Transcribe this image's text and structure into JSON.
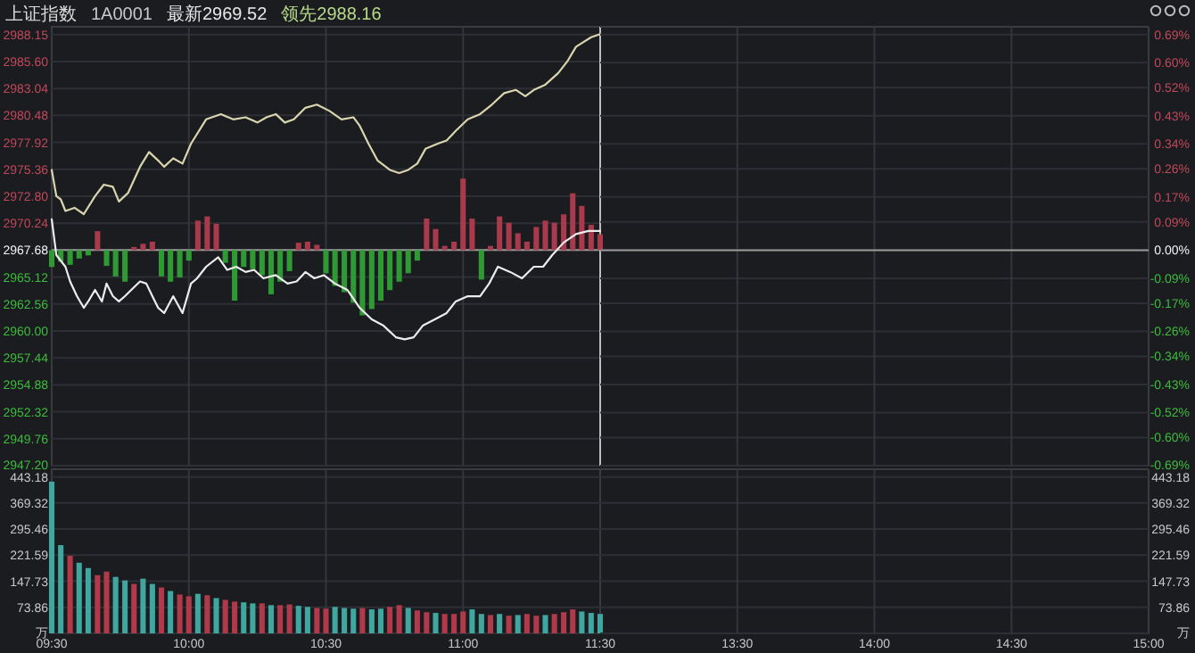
{
  "chart_data": [
    {
      "type": "line",
      "title": "上证指数",
      "annotations": [
        "1A0001",
        "最新2969.52",
        "领先2988.16"
      ],
      "xlim": [
        9.5,
        11.5
      ],
      "xticks": [
        {
          "value": 9.5,
          "label": null
        },
        {
          "value": 10,
          "label": null
        },
        {
          "value": 10.5,
          "label": null
        },
        {
          "value": 11,
          "label": null
        },
        {
          "value": 11.5,
          "label": null
        }
      ],
      "tick_labels": "y",
      "ylim": [
        2947.2,
        2988.9
      ],
      "yticks": [
        {
          "value": 2988.15,
          "label": "2988.15"
        },
        {
          "value": 2985.6,
          "label": "2985.60"
        },
        {
          "value": 2983.04,
          "label": "2983.04"
        },
        {
          "value": 2980.48,
          "label": "2980.48"
        },
        {
          "value": 2977.92,
          "label": "2977.92"
        },
        {
          "value": 2975.36,
          "label": "2975.36"
        },
        {
          "value": 2972.8,
          "label": "2972.80"
        },
        {
          "value": 2970.24,
          "label": "2970.24"
        },
        {
          "value": 2967.68,
          "label": "2967.68"
        },
        {
          "value": 2965.12,
          "label": "2965.12"
        },
        {
          "value": 2962.56,
          "label": "2962.56"
        },
        {
          "value": 2960,
          "label": "2960.00"
        },
        {
          "value": 2957.44,
          "label": "2957.44"
        },
        {
          "value": 2954.88,
          "label": "2954.88"
        },
        {
          "value": 2952.32,
          "label": "2952.32"
        },
        {
          "value": 2949.76,
          "label": "2949.76"
        },
        {
          "value": 2947.2,
          "label": "2947.20"
        }
      ],
      "grid": true,
      "ref_lines": [
        {
          "axis": "y",
          "value": 2967.68,
          "color": "#9a9a9a"
        },
        {
          "axis": "x",
          "value": 11.5,
          "color": "#bdbdbd"
        }
      ],
      "series": [
        {
          "type": "bar",
          "x": [
            9.5,
            9.533,
            9.567,
            9.6,
            9.633,
            9.667,
            9.7,
            9.733,
            9.767,
            9.8,
            9.833,
            9.867,
            9.9,
            9.933,
            9.967,
            10,
            10.033,
            10.067,
            10.1,
            10.133,
            10.167,
            10.2,
            10.233,
            10.267,
            10.3,
            10.333,
            10.367,
            10.4,
            10.433,
            10.467,
            10.5,
            10.533,
            10.567,
            10.6,
            10.633,
            10.667,
            10.7,
            10.733,
            10.767,
            10.8,
            10.833,
            10.867,
            10.9,
            10.933,
            10.967,
            11,
            11.033,
            11.067,
            11.1,
            11.133,
            11.167,
            11.2,
            11.233,
            11.267,
            11.3,
            11.333,
            11.367,
            11.4,
            11.433,
            11.467,
            11.5
          ],
          "base": [
            2967.68,
            2967.68,
            2967.68,
            2967.68,
            2967.68,
            2967.68,
            2967.68,
            2967.68,
            2967.68,
            2967.68,
            2967.68,
            2967.68,
            2967.68,
            2967.68,
            2967.68,
            2967.68,
            2967.68,
            2967.68,
            2967.68,
            2967.68,
            2967.68,
            2967.68,
            2967.68,
            2967.68,
            2967.68,
            2967.68,
            2967.68,
            2967.68,
            2967.68,
            2967.68,
            2967.68,
            2967.68,
            2967.68,
            2967.68,
            2967.68,
            2967.68,
            2967.68,
            2967.68,
            2967.68,
            2967.68,
            2967.68,
            2967.68,
            2967.68,
            2967.68,
            2967.68,
            2967.68,
            2967.68,
            2967.68,
            2967.68,
            2967.68,
            2967.68,
            2967.68,
            2967.68,
            2967.68,
            2967.68,
            2967.68,
            2967.68,
            2967.68,
            2967.68,
            2967.68,
            2967.68
          ],
          "values": [
            -1.6,
            -1.1,
            -1.4,
            -0.8,
            -0.5,
            1.8,
            -1.5,
            -2.5,
            -3.0,
            0.3,
            0.6,
            0.8,
            -2.5,
            -3.0,
            -2.6,
            -1.0,
            2.8,
            3.2,
            2.5,
            -1.2,
            -4.8,
            -1.6,
            -1.8,
            -2.4,
            -4.2,
            -3.0,
            -2.0,
            0.7,
            0.8,
            0.5,
            -2.2,
            -3.4,
            -4.0,
            -5.0,
            -6.2,
            -5.6,
            -4.8,
            -3.8,
            -3.0,
            -2.2,
            -1.0,
            3.0,
            2.0,
            0.4,
            0.8,
            6.8,
            3.0,
            -2.8,
            0.4,
            3.2,
            2.6,
            1.6,
            0.8,
            2.2,
            2.8,
            2.6,
            3.4,
            5.4,
            4.2,
            2.4,
            1.5
          ],
          "colors": [
            "#2f9a34",
            "#2f9a34",
            "#2f9a34",
            "#2f9a34",
            "#2f9a34",
            "#a83a4c",
            "#2f9a34",
            "#2f9a34",
            "#2f9a34",
            "#a83a4c",
            "#a83a4c",
            "#a83a4c",
            "#2f9a34",
            "#2f9a34",
            "#2f9a34",
            "#2f9a34",
            "#a83a4c",
            "#a83a4c",
            "#a83a4c",
            "#2f9a34",
            "#2f9a34",
            "#2f9a34",
            "#2f9a34",
            "#2f9a34",
            "#2f9a34",
            "#2f9a34",
            "#2f9a34",
            "#a83a4c",
            "#a83a4c",
            "#a83a4c",
            "#2f9a34",
            "#2f9a34",
            "#2f9a34",
            "#2f9a34",
            "#2f9a34",
            "#2f9a34",
            "#2f9a34",
            "#2f9a34",
            "#2f9a34",
            "#2f9a34",
            "#2f9a34",
            "#a83a4c",
            "#a83a4c",
            "#a83a4c",
            "#a83a4c",
            "#a83a4c",
            "#a83a4c",
            "#2f9a34",
            "#a83a4c",
            "#a83a4c",
            "#a83a4c",
            "#a83a4c",
            "#a83a4c",
            "#a83a4c",
            "#a83a4c",
            "#a83a4c",
            "#a83a4c",
            "#a83a4c",
            "#a83a4c",
            "#a83a4c",
            "#a83a4c"
          ]
        },
        {
          "color": "#d9d5ae",
          "x": [
            9.5,
            9.517,
            9.533,
            9.55,
            9.583,
            9.617,
            9.658,
            9.69,
            9.723,
            9.745,
            9.778,
            9.822,
            9.855,
            9.888,
            9.91,
            9.943,
            9.977,
            10.008,
            10.063,
            10.117,
            10.162,
            10.207,
            10.25,
            10.283,
            10.317,
            10.35,
            10.383,
            10.425,
            10.467,
            10.513,
            10.557,
            10.6,
            10.623,
            10.655,
            10.688,
            10.733,
            10.767,
            10.8,
            10.833,
            10.863,
            10.908,
            10.94,
            10.973,
            11.017,
            11.062,
            11.105,
            11.15,
            11.193,
            11.227,
            11.258,
            11.3,
            11.347,
            11.38,
            11.412,
            11.467,
            11.5
          ],
          "values": [
            2975.3,
            2972.8,
            2972.5,
            2971.4,
            2971.7,
            2971.1,
            2972.8,
            2973.9,
            2973.7,
            2972.3,
            2973.1,
            2975.6,
            2977.0,
            2976.2,
            2975.6,
            2976.4,
            2975.9,
            2977.8,
            2980.1,
            2980.6,
            2980.1,
            2980.3,
            2979.8,
            2980.3,
            2980.6,
            2979.8,
            2980.1,
            2981.2,
            2981.5,
            2980.9,
            2980.1,
            2980.3,
            2979.5,
            2977.8,
            2976.2,
            2975.3,
            2975.0,
            2975.3,
            2975.9,
            2977.3,
            2977.8,
            2978.1,
            2979.0,
            2980.1,
            2980.6,
            2981.5,
            2982.6,
            2982.9,
            2982.3,
            2982.9,
            2983.4,
            2984.5,
            2985.6,
            2987.0,
            2987.9,
            2988.2
          ]
        },
        {
          "color": "#ececec",
          "x": [
            9.5,
            9.517,
            9.55,
            9.567,
            9.592,
            9.617,
            9.633,
            9.658,
            9.683,
            9.7,
            9.723,
            9.745,
            9.767,
            9.79,
            9.822,
            9.845,
            9.867,
            9.888,
            9.91,
            9.943,
            9.977,
            10.008,
            10.03,
            10.063,
            10.107,
            10.14,
            10.173,
            10.207,
            10.238,
            10.272,
            10.317,
            10.36,
            10.393,
            10.425,
            10.458,
            10.492,
            10.533,
            10.578,
            10.623,
            10.667,
            10.71,
            10.755,
            10.787,
            10.82,
            10.853,
            10.897,
            10.94,
            10.973,
            11.017,
            11.062,
            11.095,
            11.127,
            11.172,
            11.215,
            11.258,
            11.292,
            11.325,
            11.367,
            11.412,
            11.457,
            11.5
          ],
          "values": [
            2970.6,
            2967.2,
            2966.1,
            2964.7,
            2963.3,
            2962.2,
            2962.8,
            2963.9,
            2962.8,
            2964.5,
            2963.3,
            2962.8,
            2963.3,
            2963.9,
            2964.7,
            2964.5,
            2963.3,
            2962.2,
            2961.7,
            2963.3,
            2961.7,
            2964.5,
            2965.0,
            2966.1,
            2967.0,
            2965.8,
            2966.1,
            2965.6,
            2965.8,
            2965.0,
            2965.3,
            2964.5,
            2964.7,
            2965.6,
            2965.0,
            2965.3,
            2964.5,
            2963.9,
            2962.2,
            2961.1,
            2960.5,
            2959.4,
            2959.2,
            2959.4,
            2960.5,
            2961.1,
            2961.7,
            2962.8,
            2963.3,
            2963.3,
            2964.5,
            2966.1,
            2965.6,
            2965.0,
            2966.1,
            2966.1,
            2967.2,
            2968.4,
            2969.2,
            2969.5,
            2969.5
          ]
        }
      ]
    },
    {
      "type": "line",
      "xlim": [
        13,
        15
      ],
      "xticks": [
        {
          "value": 13.5,
          "label": null
        },
        {
          "value": 14,
          "label": null
        },
        {
          "value": 14.5,
          "label": null
        },
        {
          "value": 15,
          "label": null
        }
      ],
      "tick_labels": "y",
      "y2lim": [
        -0.69,
        0.715
      ],
      "y2ticks": [
        {
          "value": 0.69,
          "label": "0.69%"
        },
        {
          "value": 0.6,
          "label": "0.60%"
        },
        {
          "value": 0.52,
          "label": "0.52%"
        },
        {
          "value": 0.43,
          "label": "0.43%"
        },
        {
          "value": 0.34,
          "label": "0.34%"
        },
        {
          "value": 0.26,
          "label": "0.26%"
        },
        {
          "value": 0.17,
          "label": "0.17%"
        },
        {
          "value": 0.09,
          "label": "0.09%"
        },
        {
          "value": 0,
          "label": "0.00%"
        },
        {
          "value": -0.09,
          "label": "-0.09%"
        },
        {
          "value": -0.17,
          "label": "-0.17%"
        },
        {
          "value": -0.26,
          "label": "-0.26%"
        },
        {
          "value": -0.34,
          "label": "-0.34%"
        },
        {
          "value": -0.43,
          "label": "-0.43%"
        },
        {
          "value": -0.52,
          "label": "-0.52%"
        },
        {
          "value": -0.6,
          "label": "-0.60%"
        },
        {
          "value": -0.69,
          "label": "-0.69%"
        }
      ],
      "grid": true,
      "ref_lines": [
        {
          "axis": "y2",
          "value": 0,
          "color": "#9a9a9a"
        }
      ]
    },
    {
      "type": "bar",
      "xlim": [
        9.5,
        11.5
      ],
      "xticks": [
        {
          "value": 9.5,
          "label": "09:30"
        },
        {
          "value": 10,
          "label": "10:00"
        },
        {
          "value": 10.5,
          "label": "10:30"
        },
        {
          "value": 11,
          "label": "11:00"
        },
        {
          "value": 11.5,
          "label": "11:30"
        }
      ],
      "ylim": [
        0,
        465
      ],
      "yticks": [
        443.18,
        369.32,
        295.46,
        221.59,
        147.73,
        73.86,
        {
          "value": 0,
          "label": "万"
        }
      ],
      "grid": true,
      "x": [
        9.5,
        9.533,
        9.567,
        9.6,
        9.633,
        9.667,
        9.7,
        9.733,
        9.767,
        9.8,
        9.833,
        9.867,
        9.9,
        9.933,
        9.967,
        10,
        10.033,
        10.067,
        10.1,
        10.133,
        10.167,
        10.2,
        10.233,
        10.267,
        10.3,
        10.333,
        10.367,
        10.4,
        10.433,
        10.467,
        10.5,
        10.533,
        10.567,
        10.6,
        10.633,
        10.667,
        10.7,
        10.733,
        10.767,
        10.8,
        10.833,
        10.867,
        10.9,
        10.933,
        10.967,
        11,
        11.033,
        11.067,
        11.1,
        11.133,
        11.167,
        11.2,
        11.233,
        11.267,
        11.3,
        11.333,
        11.367,
        11.4,
        11.433,
        11.467,
        11.5
      ],
      "values": [
        430,
        250,
        220,
        200,
        185,
        165,
        175,
        160,
        150,
        140,
        155,
        140,
        130,
        120,
        110,
        105,
        112,
        108,
        100,
        95,
        90,
        88,
        85,
        85,
        80,
        80,
        82,
        78,
        75,
        72,
        70,
        75,
        72,
        70,
        72,
        68,
        70,
        75,
        80,
        72,
        65,
        60,
        58,
        55,
        55,
        62,
        68,
        55,
        52,
        55,
        50,
        52,
        55,
        50,
        52,
        55,
        60,
        68,
        62,
        58,
        55
      ],
      "colors": [
        "#3fa6a0",
        "#3fa6a0",
        "#b03a4a",
        "#3fa6a0",
        "#3fa6a0",
        "#b03a4a",
        "#b03a4a",
        "#3fa6a0",
        "#3fa6a0",
        "#b03a4a",
        "#3fa6a0",
        "#3fa6a0",
        "#b03a4a",
        "#3fa6a0",
        "#b03a4a",
        "#b03a4a",
        "#3fa6a0",
        "#b03a4a",
        "#3fa6a0",
        "#b03a4a",
        "#b03a4a",
        "#3fa6a0",
        "#3fa6a0",
        "#b03a4a",
        "#3fa6a0",
        "#b03a4a",
        "#b03a4a",
        "#3fa6a0",
        "#3fa6a0",
        "#b03a4a",
        "#b03a4a",
        "#3fa6a0",
        "#3fa6a0",
        "#3fa6a0",
        "#b03a4a",
        "#3fa6a0",
        "#3fa6a0",
        "#b03a4a",
        "#b03a4a",
        "#3fa6a0",
        "#b03a4a",
        "#b03a4a",
        "#3fa6a0",
        "#b03a4a",
        "#b03a4a",
        "#b03a4a",
        "#3fa6a0",
        "#3fa6a0",
        "#b03a4a",
        "#3fa6a0",
        "#b03a4a",
        "#3fa6a0",
        "#b03a4a",
        "#b03a4a",
        "#3fa6a0",
        "#b03a4a",
        "#b03a4a",
        "#b03a4a",
        "#3fa6a0",
        "#3fa6a0",
        "#3fa6a0"
      ]
    },
    {
      "type": "bar",
      "xlim": [
        13,
        15
      ],
      "xticks": [
        {
          "value": 13.5,
          "label": "13:30"
        },
        {
          "value": 14,
          "label": "14:00"
        },
        {
          "value": 14.5,
          "label": "14:30"
        },
        {
          "value": 15,
          "label": "15:00"
        }
      ],
      "y2lim": [
        0,
        465
      ],
      "y2ticks": [
        443.18,
        369.32,
        295.46,
        221.59,
        147.73,
        73.86,
        {
          "value": 0,
          "label": "万"
        }
      ],
      "grid": true
    }
  ]
}
